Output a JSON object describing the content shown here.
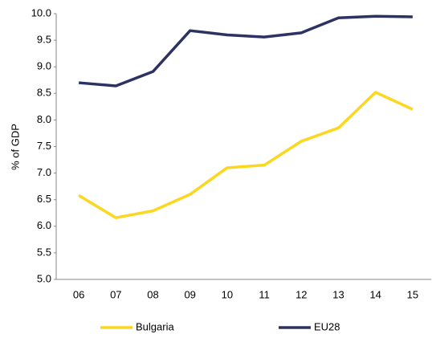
{
  "chart_data": {
    "type": "line",
    "y_label": "% of GDP",
    "categories": [
      "06",
      "07",
      "08",
      "09",
      "10",
      "11",
      "12",
      "13",
      "14",
      "15"
    ],
    "series": [
      {
        "name": "Bulgaria",
        "color": "#fcd720",
        "values": [
          6.58,
          6.16,
          6.29,
          6.6,
          7.1,
          7.15,
          7.6,
          7.85,
          8.52,
          8.2
        ]
      },
      {
        "name": "EU28",
        "color": "#2e3262",
        "values": [
          8.7,
          8.64,
          8.91,
          9.68,
          9.6,
          9.56,
          9.64,
          9.92,
          9.95,
          9.94
        ]
      }
    ],
    "ylim": [
      5,
      10
    ],
    "yticks": [
      {
        "value": 5,
        "label": "5.0"
      },
      5.5,
      {
        "value": 6,
        "label": "6.0"
      },
      6.5,
      {
        "value": 7,
        "label": "7.0"
      },
      7.5,
      {
        "value": 8,
        "label": "8.0"
      },
      8.5,
      {
        "value": 9,
        "label": "9.0"
      },
      9.5,
      {
        "value": 10,
        "label": "10.0"
      }
    ],
    "grid": false,
    "legend": "bottom"
  }
}
